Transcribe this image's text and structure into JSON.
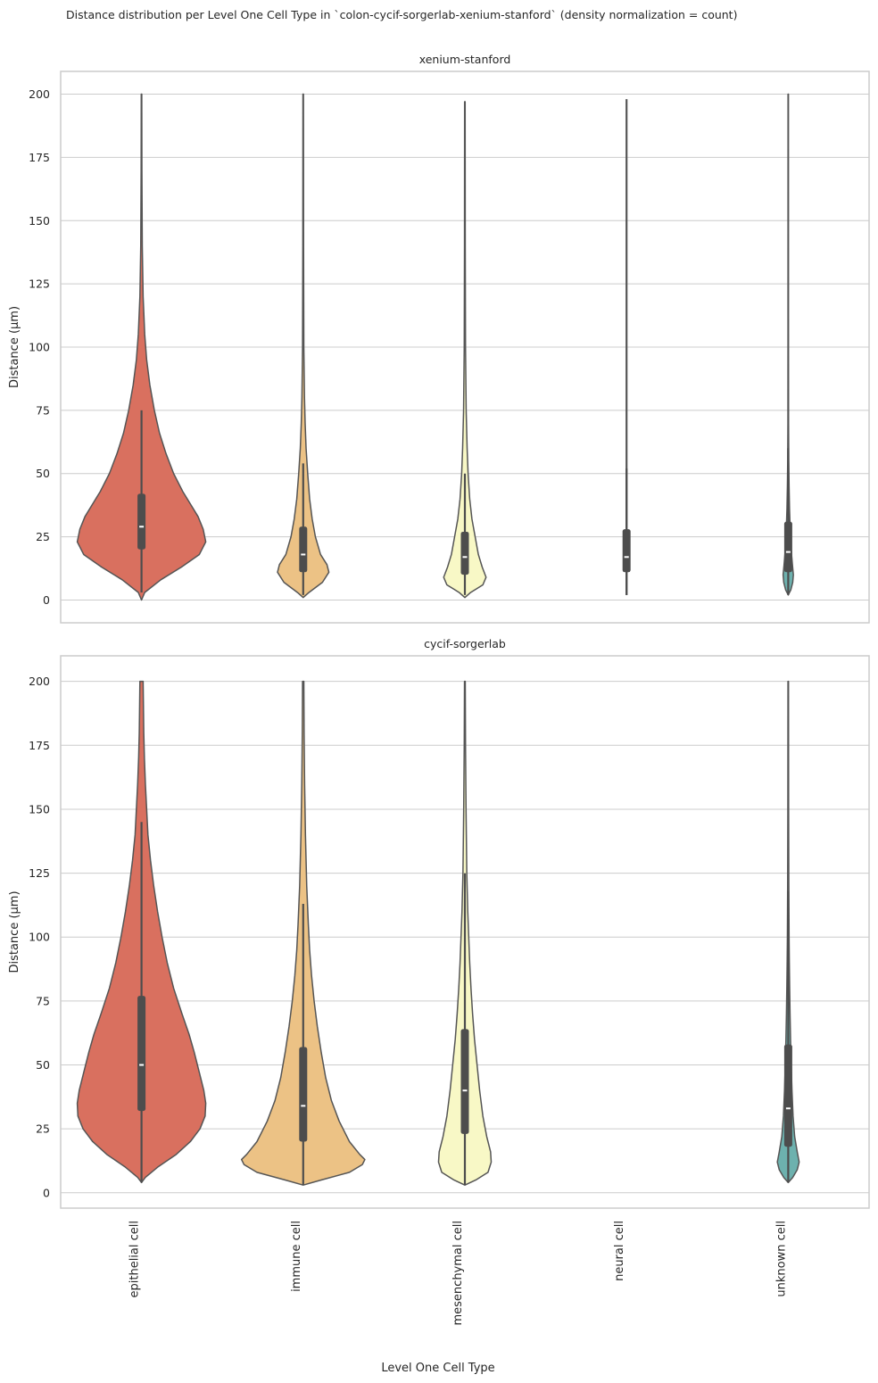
{
  "suptitle": "Distance distribution per Level One Cell Type in `colon-cycif-sorgerlab-xenium-stanford` (density normalization = count)",
  "xlabel": "Level One Cell Type",
  "categories": [
    "epithelial cell",
    "immune cell",
    "mesenchymal cell",
    "neural cell",
    "unknown cell"
  ],
  "colors": {
    "epithelial cell": "#d9705f",
    "immune cell": "#ecc285",
    "mesenchymal cell": "#f8f8c6",
    "neural cell": "#cfe4c0",
    "unknown cell": "#6db1ae",
    "outline": "#555555",
    "box": "#4d4d4d",
    "grid": "#cccccc",
    "frame": "#cccccc"
  },
  "chart_data": [
    {
      "type": "violin",
      "title": "xenium-stanford",
      "ylabel": "Distance (µm)",
      "ylim": [
        -9,
        209
      ],
      "yticks": [
        0,
        25,
        50,
        75,
        100,
        125,
        150,
        175,
        200
      ],
      "grid": "horizontal",
      "violins": [
        {
          "category": "epithelial cell",
          "min": 0,
          "max": 200,
          "whisker_low": 3,
          "whisker_high": 75,
          "q1": 20,
          "median": 29,
          "q3": 42,
          "density": [
            [
              0,
              0.0
            ],
            [
              3,
              0.05
            ],
            [
              8,
              0.3
            ],
            [
              13,
              0.62
            ],
            [
              18,
              0.9
            ],
            [
              23,
              1.0
            ],
            [
              28,
              0.96
            ],
            [
              33,
              0.88
            ],
            [
              38,
              0.76
            ],
            [
              43,
              0.64
            ],
            [
              50,
              0.5
            ],
            [
              58,
              0.38
            ],
            [
              66,
              0.28
            ],
            [
              75,
              0.2
            ],
            [
              85,
              0.13
            ],
            [
              95,
              0.08
            ],
            [
              105,
              0.05
            ],
            [
              120,
              0.025
            ],
            [
              140,
              0.012
            ],
            [
              170,
              0.006
            ],
            [
              200,
              0.004
            ]
          ]
        },
        {
          "category": "immune cell",
          "min": 1,
          "max": 200,
          "whisker_low": 2,
          "whisker_high": 54,
          "q1": 11,
          "median": 18,
          "q3": 29,
          "density": [
            [
              1,
              0.0
            ],
            [
              3,
              0.09
            ],
            [
              7,
              0.3
            ],
            [
              11,
              0.4
            ],
            [
              14,
              0.37
            ],
            [
              18,
              0.27
            ],
            [
              25,
              0.19
            ],
            [
              32,
              0.14
            ],
            [
              40,
              0.1
            ],
            [
              50,
              0.07
            ],
            [
              60,
              0.045
            ],
            [
              70,
              0.03
            ],
            [
              80,
              0.02
            ],
            [
              100,
              0.01
            ],
            [
              140,
              0.006
            ],
            [
              200,
              0.004
            ]
          ]
        },
        {
          "category": "mesenchymal cell",
          "min": 1,
          "max": 197,
          "whisker_low": 2,
          "whisker_high": 50,
          "q1": 10,
          "median": 17,
          "q3": 27,
          "density": [
            [
              1,
              0.0
            ],
            [
              3,
              0.09
            ],
            [
              6,
              0.28
            ],
            [
              9,
              0.33
            ],
            [
              13,
              0.27
            ],
            [
              18,
              0.21
            ],
            [
              25,
              0.16
            ],
            [
              32,
              0.11
            ],
            [
              40,
              0.075
            ],
            [
              50,
              0.05
            ],
            [
              60,
              0.035
            ],
            [
              75,
              0.02
            ],
            [
              100,
              0.01
            ],
            [
              140,
              0.006
            ],
            [
              197,
              0.004
            ]
          ]
        },
        {
          "category": "neural cell",
          "min": 2,
          "max": 198,
          "whisker_low": 2,
          "whisker_high": 52,
          "q1": 11,
          "median": 17,
          "q3": 28,
          "density": [
            [
              2,
              0.004
            ],
            [
              198,
              0.004
            ]
          ]
        },
        {
          "category": "unknown cell",
          "min": 2,
          "max": 200,
          "whisker_low": 2,
          "whisker_high": 60,
          "q1": 11,
          "median": 19,
          "q3": 31,
          "density": [
            [
              2,
              0.0
            ],
            [
              4,
              0.04
            ],
            [
              7,
              0.07
            ],
            [
              10,
              0.08
            ],
            [
              14,
              0.065
            ],
            [
              20,
              0.045
            ],
            [
              28,
              0.03
            ],
            [
              36,
              0.02
            ],
            [
              45,
              0.013
            ],
            [
              55,
              0.008
            ],
            [
              70,
              0.005
            ],
            [
              100,
              0.004
            ],
            [
              200,
              0.003
            ]
          ]
        }
      ]
    },
    {
      "type": "violin",
      "title": "cycif-sorgerlab",
      "ylabel": "Distance (µm)",
      "ylim": [
        -6,
        210
      ],
      "yticks": [
        0,
        25,
        50,
        75,
        100,
        125,
        150,
        175,
        200
      ],
      "grid": "horizontal",
      "violins": [
        {
          "category": "epithelial cell",
          "min": 4,
          "max": 200,
          "whisker_low": 4,
          "whisker_high": 145,
          "q1": 32,
          "median": 50,
          "q3": 77,
          "density": [
            [
              4,
              0.0
            ],
            [
              6,
              0.06
            ],
            [
              10,
              0.25
            ],
            [
              15,
              0.54
            ],
            [
              20,
              0.76
            ],
            [
              25,
              0.91
            ],
            [
              30,
              0.99
            ],
            [
              35,
              1.0
            ],
            [
              40,
              0.97
            ],
            [
              47,
              0.9
            ],
            [
              55,
              0.82
            ],
            [
              62,
              0.74
            ],
            [
              70,
              0.63
            ],
            [
              80,
              0.5
            ],
            [
              90,
              0.4
            ],
            [
              100,
              0.32
            ],
            [
              110,
              0.25
            ],
            [
              120,
              0.19
            ],
            [
              130,
              0.14
            ],
            [
              140,
              0.1
            ],
            [
              150,
              0.08
            ],
            [
              160,
              0.06
            ],
            [
              170,
              0.045
            ],
            [
              180,
              0.035
            ],
            [
              190,
              0.03
            ],
            [
              200,
              0.025
            ]
          ]
        },
        {
          "category": "immune cell",
          "min": 3,
          "max": 200,
          "whisker_low": 3,
          "whisker_high": 113,
          "q1": 20,
          "median": 34,
          "q3": 57,
          "density": [
            [
              3,
              0.0
            ],
            [
              5,
              0.28
            ],
            [
              8,
              0.72
            ],
            [
              11,
              0.92
            ],
            [
              13,
              0.96
            ],
            [
              15,
              0.88
            ],
            [
              20,
              0.72
            ],
            [
              28,
              0.56
            ],
            [
              36,
              0.44
            ],
            [
              45,
              0.35
            ],
            [
              55,
              0.28
            ],
            [
              65,
              0.22
            ],
            [
              75,
              0.17
            ],
            [
              85,
              0.13
            ],
            [
              95,
              0.1
            ],
            [
              105,
              0.08
            ],
            [
              120,
              0.055
            ],
            [
              140,
              0.035
            ],
            [
              160,
              0.022
            ],
            [
              180,
              0.014
            ],
            [
              200,
              0.01
            ]
          ]
        },
        {
          "category": "mesenchymal cell",
          "min": 3,
          "max": 200,
          "whisker_low": 3,
          "whisker_high": 125,
          "q1": 23,
          "median": 40,
          "q3": 64,
          "density": [
            [
              3,
              0.0
            ],
            [
              5,
              0.17
            ],
            [
              8,
              0.36
            ],
            [
              12,
              0.41
            ],
            [
              16,
              0.4
            ],
            [
              22,
              0.34
            ],
            [
              30,
              0.28
            ],
            [
              40,
              0.23
            ],
            [
              50,
              0.19
            ],
            [
              60,
              0.15
            ],
            [
              70,
              0.12
            ],
            [
              80,
              0.095
            ],
            [
              90,
              0.075
            ],
            [
              100,
              0.06
            ],
            [
              110,
              0.045
            ],
            [
              125,
              0.03
            ],
            [
              150,
              0.018
            ],
            [
              175,
              0.01
            ],
            [
              200,
              0.006
            ]
          ]
        },
        {
          "category": "unknown cell",
          "min": 4,
          "max": 200,
          "whisker_low": 4,
          "whisker_high": 118,
          "q1": 18,
          "median": 33,
          "q3": 58,
          "density": [
            [
              4,
              0.0
            ],
            [
              6,
              0.07
            ],
            [
              9,
              0.14
            ],
            [
              12,
              0.17
            ],
            [
              16,
              0.14
            ],
            [
              22,
              0.1
            ],
            [
              30,
              0.075
            ],
            [
              40,
              0.058
            ],
            [
              50,
              0.046
            ],
            [
              60,
              0.036
            ],
            [
              70,
              0.028
            ],
            [
              80,
              0.022
            ],
            [
              90,
              0.017
            ],
            [
              100,
              0.013
            ],
            [
              120,
              0.009
            ],
            [
              150,
              0.006
            ],
            [
              200,
              0.004
            ]
          ]
        }
      ]
    }
  ]
}
